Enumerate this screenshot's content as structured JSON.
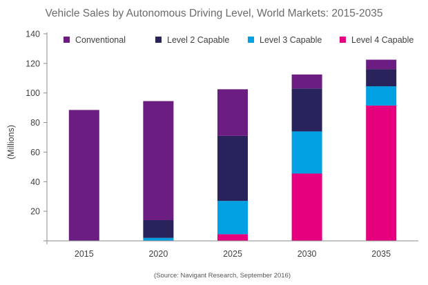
{
  "chart_data": {
    "type": "bar",
    "stacked": true,
    "title": "Vehicle Sales by Autonomous Driving Level, World Markets: 2015-2035",
    "xlabel": "",
    "ylabel": "(Millions)",
    "ylim": [
      0,
      140
    ],
    "yticks": [
      "",
      "20",
      "40",
      "60",
      "80",
      "100",
      "120",
      "140"
    ],
    "categories": [
      "2015",
      "2020",
      "2025",
      "2030",
      "2035"
    ],
    "series": [
      {
        "name": "Level 4 Capable",
        "color": "#e6007e",
        "values": [
          0,
          0,
          4.5,
          45.5,
          91.5
        ]
      },
      {
        "name": "Level 3 Capable",
        "color": "#00a0e3",
        "values": [
          0,
          2.0,
          22.5,
          28.5,
          13.0
        ]
      },
      {
        "name": "Level 2 Capable",
        "color": "#29235c",
        "values": [
          0,
          12.0,
          44.0,
          29.0,
          11.5
        ]
      },
      {
        "name": "Conventional",
        "color": "#6b1d82",
        "values": [
          88.5,
          80.5,
          31.5,
          9.5,
          6.5
        ]
      }
    ],
    "legend_order": [
      "Conventional",
      "Level 2 Capable",
      "Level 3 Capable",
      "Level 4 Capable"
    ],
    "legend_position": "top",
    "grid": false,
    "source": "(Source: Navigant Research, September 2016)"
  }
}
